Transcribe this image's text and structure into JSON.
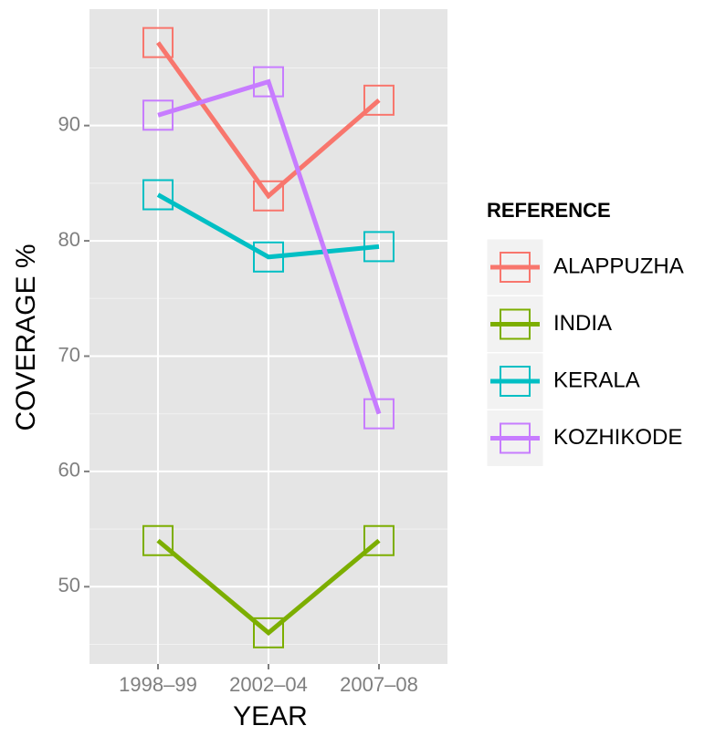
{
  "chart_data": {
    "type": "line",
    "x_label": "YEAR",
    "y_label": "COVERAGE %",
    "categories": [
      "1998–99",
      "2002–04",
      "2007–08"
    ],
    "series": [
      {
        "name": "ALAPPUZHA",
        "color": "#f8766d",
        "values": [
          97.2,
          83.9,
          92.2
        ]
      },
      {
        "name": "INDIA",
        "color": "#7cae00",
        "values": [
          54,
          46,
          54
        ]
      },
      {
        "name": "KERALA",
        "color": "#00bfc4",
        "values": [
          84,
          78.6,
          79.5
        ]
      },
      {
        "name": "KOZHIKODE",
        "color": "#c77cff",
        "values": [
          90.9,
          93.8,
          65
        ]
      }
    ],
    "ylim": [
      43.3,
      100.1
    ],
    "yticks": [
      50,
      60,
      70,
      80,
      90
    ],
    "grid": true,
    "legend_title": "REFERENCE",
    "legend_position": "right"
  }
}
